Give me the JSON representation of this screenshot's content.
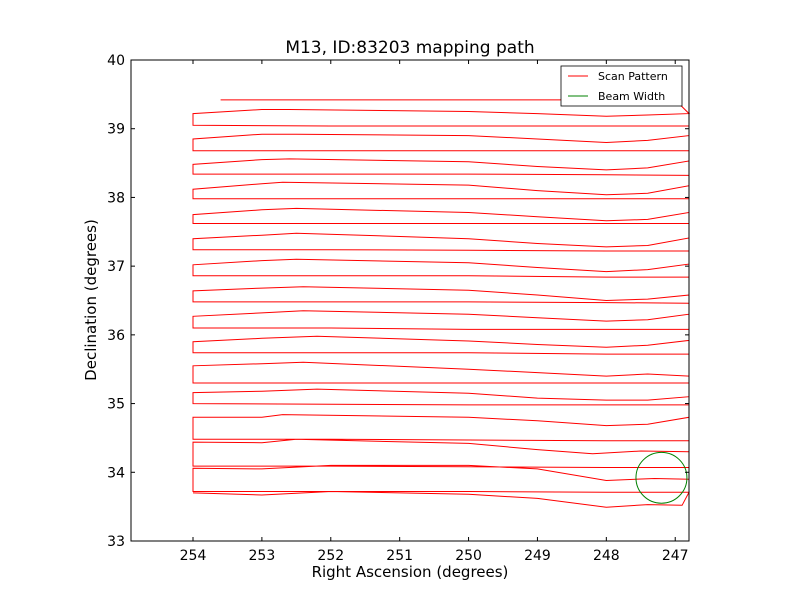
{
  "chart_data": {
    "type": "line",
    "title": "M13, ID:83203 mapping path",
    "xlabel": "Right Ascension (degrees)",
    "ylabel": "Declination (degrees)",
    "xlim": [
      254.9,
      246.8
    ],
    "ylim": [
      33,
      40
    ],
    "x_inverted": true,
    "xticks": [
      254,
      253,
      252,
      251,
      250,
      249,
      248,
      247
    ],
    "yticks": [
      33,
      34,
      35,
      36,
      37,
      38,
      39,
      40
    ],
    "grid": false,
    "legend_position": "top-right",
    "series": [
      {
        "name": "Scan Pattern",
        "color": "#ff0000",
        "points": [
          [
            254.0,
            33.7
          ],
          [
            253.0,
            33.67
          ],
          [
            252.0,
            33.72
          ],
          [
            250.0,
            33.68
          ],
          [
            249.0,
            33.62
          ],
          [
            248.0,
            33.49
          ],
          [
            247.4,
            33.53
          ],
          [
            246.9,
            33.52
          ],
          [
            246.8,
            33.71
          ],
          [
            248.0,
            33.71
          ],
          [
            250.0,
            33.72
          ],
          [
            252.0,
            33.72
          ],
          [
            254.0,
            33.72
          ],
          [
            254.0,
            34.06
          ],
          [
            253.0,
            34.05
          ],
          [
            252.0,
            34.1
          ],
          [
            250.0,
            34.1
          ],
          [
            249.0,
            34.05
          ],
          [
            248.0,
            33.88
          ],
          [
            247.3,
            33.91
          ],
          [
            246.8,
            33.9
          ],
          [
            246.8,
            34.07
          ],
          [
            248.0,
            34.07
          ],
          [
            250.0,
            34.08
          ],
          [
            252.0,
            34.09
          ],
          [
            254.0,
            34.09
          ],
          [
            254.0,
            34.44
          ],
          [
            253.0,
            34.43
          ],
          [
            252.5,
            34.48
          ],
          [
            250.0,
            34.42
          ],
          [
            249.0,
            34.33
          ],
          [
            248.2,
            34.27
          ],
          [
            247.5,
            34.31
          ],
          [
            246.8,
            34.3
          ],
          [
            246.8,
            34.46
          ],
          [
            248.0,
            34.46
          ],
          [
            250.0,
            34.47
          ],
          [
            252.0,
            34.48
          ],
          [
            254.0,
            34.48
          ],
          [
            254.0,
            34.8
          ],
          [
            253.0,
            34.8
          ],
          [
            252.7,
            34.84
          ],
          [
            250.0,
            34.8
          ],
          [
            249.0,
            34.75
          ],
          [
            248.0,
            34.68
          ],
          [
            247.4,
            34.7
          ],
          [
            246.8,
            34.8
          ],
          [
            246.8,
            34.98
          ],
          [
            248.0,
            34.98
          ],
          [
            250.0,
            34.98
          ],
          [
            252.0,
            34.99
          ],
          [
            254.0,
            35.0
          ],
          [
            254.0,
            35.16
          ],
          [
            253.0,
            35.18
          ],
          [
            252.2,
            35.21
          ],
          [
            250.0,
            35.15
          ],
          [
            249.0,
            35.08
          ],
          [
            248.0,
            35.05
          ],
          [
            247.4,
            35.05
          ],
          [
            246.8,
            35.1
          ],
          [
            246.8,
            35.3
          ],
          [
            248.0,
            35.3
          ],
          [
            250.0,
            35.3
          ],
          [
            252.0,
            35.3
          ],
          [
            254.0,
            35.3
          ],
          [
            254.0,
            35.55
          ],
          [
            253.0,
            35.58
          ],
          [
            252.4,
            35.6
          ],
          [
            250.0,
            35.5
          ],
          [
            249.0,
            35.45
          ],
          [
            248.0,
            35.4
          ],
          [
            247.4,
            35.43
          ],
          [
            246.8,
            35.4
          ],
          [
            246.8,
            35.72
          ],
          [
            248.0,
            35.72
          ],
          [
            250.0,
            35.74
          ],
          [
            252.0,
            35.74
          ],
          [
            254.0,
            35.74
          ],
          [
            254.0,
            35.9
          ],
          [
            253.0,
            35.95
          ],
          [
            252.2,
            35.98
          ],
          [
            250.0,
            35.91
          ],
          [
            249.0,
            35.86
          ],
          [
            248.0,
            35.82
          ],
          [
            247.4,
            35.85
          ],
          [
            246.8,
            35.92
          ],
          [
            246.8,
            36.08
          ],
          [
            248.0,
            36.08
          ],
          [
            250.0,
            36.08
          ],
          [
            252.0,
            36.1
          ],
          [
            254.0,
            36.1
          ],
          [
            254.0,
            36.27
          ],
          [
            253.0,
            36.32
          ],
          [
            252.4,
            36.35
          ],
          [
            250.0,
            36.3
          ],
          [
            249.0,
            36.25
          ],
          [
            248.0,
            36.2
          ],
          [
            247.4,
            36.22
          ],
          [
            246.8,
            36.3
          ],
          [
            246.8,
            36.46
          ],
          [
            248.0,
            36.47
          ],
          [
            250.0,
            36.48
          ],
          [
            252.0,
            36.48
          ],
          [
            254.0,
            36.48
          ],
          [
            254.0,
            36.64
          ],
          [
            253.0,
            36.68
          ],
          [
            252.4,
            36.7
          ],
          [
            250.0,
            36.65
          ],
          [
            249.0,
            36.58
          ],
          [
            248.0,
            36.5
          ],
          [
            247.4,
            36.52
          ],
          [
            246.8,
            36.58
          ],
          [
            246.8,
            36.84
          ],
          [
            248.0,
            36.84
          ],
          [
            250.0,
            36.86
          ],
          [
            252.0,
            36.86
          ],
          [
            254.0,
            36.86
          ],
          [
            254.0,
            37.02
          ],
          [
            253.0,
            37.08
          ],
          [
            252.5,
            37.1
          ],
          [
            250.0,
            37.05
          ],
          [
            249.0,
            36.98
          ],
          [
            248.0,
            36.92
          ],
          [
            247.4,
            36.95
          ],
          [
            246.8,
            37.03
          ],
          [
            246.8,
            37.22
          ],
          [
            248.0,
            37.22
          ],
          [
            250.0,
            37.23
          ],
          [
            252.0,
            37.24
          ],
          [
            254.0,
            37.24
          ],
          [
            254.0,
            37.4
          ],
          [
            253.0,
            37.45
          ],
          [
            252.5,
            37.48
          ],
          [
            250.0,
            37.4
          ],
          [
            249.0,
            37.33
          ],
          [
            248.0,
            37.28
          ],
          [
            247.4,
            37.3
          ],
          [
            246.8,
            37.41
          ],
          [
            246.8,
            37.62
          ],
          [
            248.0,
            37.62
          ],
          [
            250.0,
            37.62
          ],
          [
            252.0,
            37.62
          ],
          [
            254.0,
            37.62
          ],
          [
            254.0,
            37.75
          ],
          [
            253.0,
            37.82
          ],
          [
            252.5,
            37.84
          ],
          [
            250.0,
            37.78
          ],
          [
            249.0,
            37.72
          ],
          [
            248.0,
            37.66
          ],
          [
            247.4,
            37.68
          ],
          [
            246.8,
            37.78
          ],
          [
            246.8,
            37.98
          ],
          [
            248.0,
            37.98
          ],
          [
            250.0,
            37.98
          ],
          [
            252.0,
            37.98
          ],
          [
            254.0,
            37.98
          ],
          [
            254.0,
            38.12
          ],
          [
            253.0,
            38.2
          ],
          [
            252.7,
            38.22
          ],
          [
            250.0,
            38.18
          ],
          [
            249.0,
            38.1
          ],
          [
            248.0,
            38.04
          ],
          [
            247.4,
            38.06
          ],
          [
            246.8,
            38.17
          ],
          [
            246.8,
            38.32
          ],
          [
            248.0,
            38.33
          ],
          [
            250.0,
            38.34
          ],
          [
            252.0,
            38.34
          ],
          [
            254.0,
            38.34
          ],
          [
            254.0,
            38.48
          ],
          [
            253.0,
            38.55
          ],
          [
            252.6,
            38.56
          ],
          [
            250.0,
            38.52
          ],
          [
            249.0,
            38.45
          ],
          [
            248.0,
            38.4
          ],
          [
            247.4,
            38.43
          ],
          [
            246.8,
            38.53
          ],
          [
            246.8,
            38.68
          ],
          [
            248.0,
            38.68
          ],
          [
            250.0,
            38.68
          ],
          [
            252.0,
            38.68
          ],
          [
            254.0,
            38.68
          ],
          [
            254.0,
            38.85
          ],
          [
            253.0,
            38.92
          ],
          [
            252.5,
            38.92
          ],
          [
            250.0,
            38.9
          ],
          [
            249.0,
            38.85
          ],
          [
            248.0,
            38.8
          ],
          [
            247.4,
            38.83
          ],
          [
            246.8,
            38.9
          ],
          [
            246.8,
            39.04
          ],
          [
            248.0,
            39.04
          ],
          [
            250.0,
            39.04
          ],
          [
            252.0,
            39.04
          ],
          [
            254.0,
            39.05
          ],
          [
            254.0,
            39.22
          ],
          [
            253.0,
            39.28
          ],
          [
            252.6,
            39.28
          ],
          [
            250.0,
            39.25
          ],
          [
            249.0,
            39.22
          ],
          [
            248.0,
            39.18
          ],
          [
            247.4,
            39.2
          ],
          [
            246.8,
            39.22
          ],
          [
            247.0,
            39.42
          ],
          [
            248.0,
            39.42
          ],
          [
            250.0,
            39.42
          ],
          [
            252.0,
            39.42
          ],
          [
            253.6,
            39.42
          ]
        ]
      },
      {
        "name": "Beam Width",
        "color": "#008000",
        "shape": "circle",
        "center": [
          247.2,
          33.92
        ],
        "radius_deg": 0.37
      }
    ]
  }
}
